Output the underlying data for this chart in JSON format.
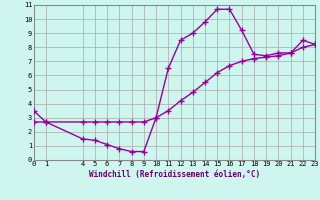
{
  "xlabel": "Windchill (Refroidissement éolien,°C)",
  "ylabel": "",
  "background_color": "#cff5ef",
  "line_color": "#990099",
  "grid_color": "#aaaaaa",
  "x_series1": [
    0,
    1,
    4,
    5,
    6,
    7,
    8,
    9,
    10,
    11,
    12,
    13,
    14,
    15,
    16,
    17,
    18,
    19,
    20,
    21,
    22,
    23
  ],
  "y_series1": [
    3.5,
    2.7,
    1.5,
    1.4,
    1.1,
    0.8,
    0.6,
    0.6,
    3.0,
    6.5,
    8.5,
    9.0,
    9.8,
    10.7,
    10.7,
    9.2,
    7.5,
    7.4,
    7.6,
    7.6,
    8.5,
    8.2
  ],
  "x_series2": [
    0,
    1,
    4,
    5,
    6,
    7,
    8,
    9,
    10,
    11,
    12,
    13,
    14,
    15,
    16,
    17,
    18,
    19,
    20,
    21,
    22,
    23
  ],
  "y_series2": [
    2.7,
    2.7,
    2.7,
    2.7,
    2.7,
    2.7,
    2.7,
    2.7,
    3.0,
    3.5,
    4.2,
    4.8,
    5.5,
    6.2,
    6.7,
    7.0,
    7.2,
    7.3,
    7.4,
    7.6,
    8.0,
    8.2
  ],
  "xlim": [
    0,
    23
  ],
  "ylim": [
    0,
    11
  ],
  "yticks": [
    0,
    1,
    2,
    3,
    4,
    5,
    6,
    7,
    8,
    9,
    10,
    11
  ],
  "xticks": [
    0,
    1,
    4,
    5,
    6,
    7,
    8,
    9,
    10,
    11,
    12,
    13,
    14,
    15,
    16,
    17,
    18,
    19,
    20,
    21,
    22,
    23
  ],
  "marker": "+",
  "markersize": 4,
  "linewidth": 1.0,
  "tick_fontsize": 5.0,
  "xlabel_fontsize": 5.5
}
